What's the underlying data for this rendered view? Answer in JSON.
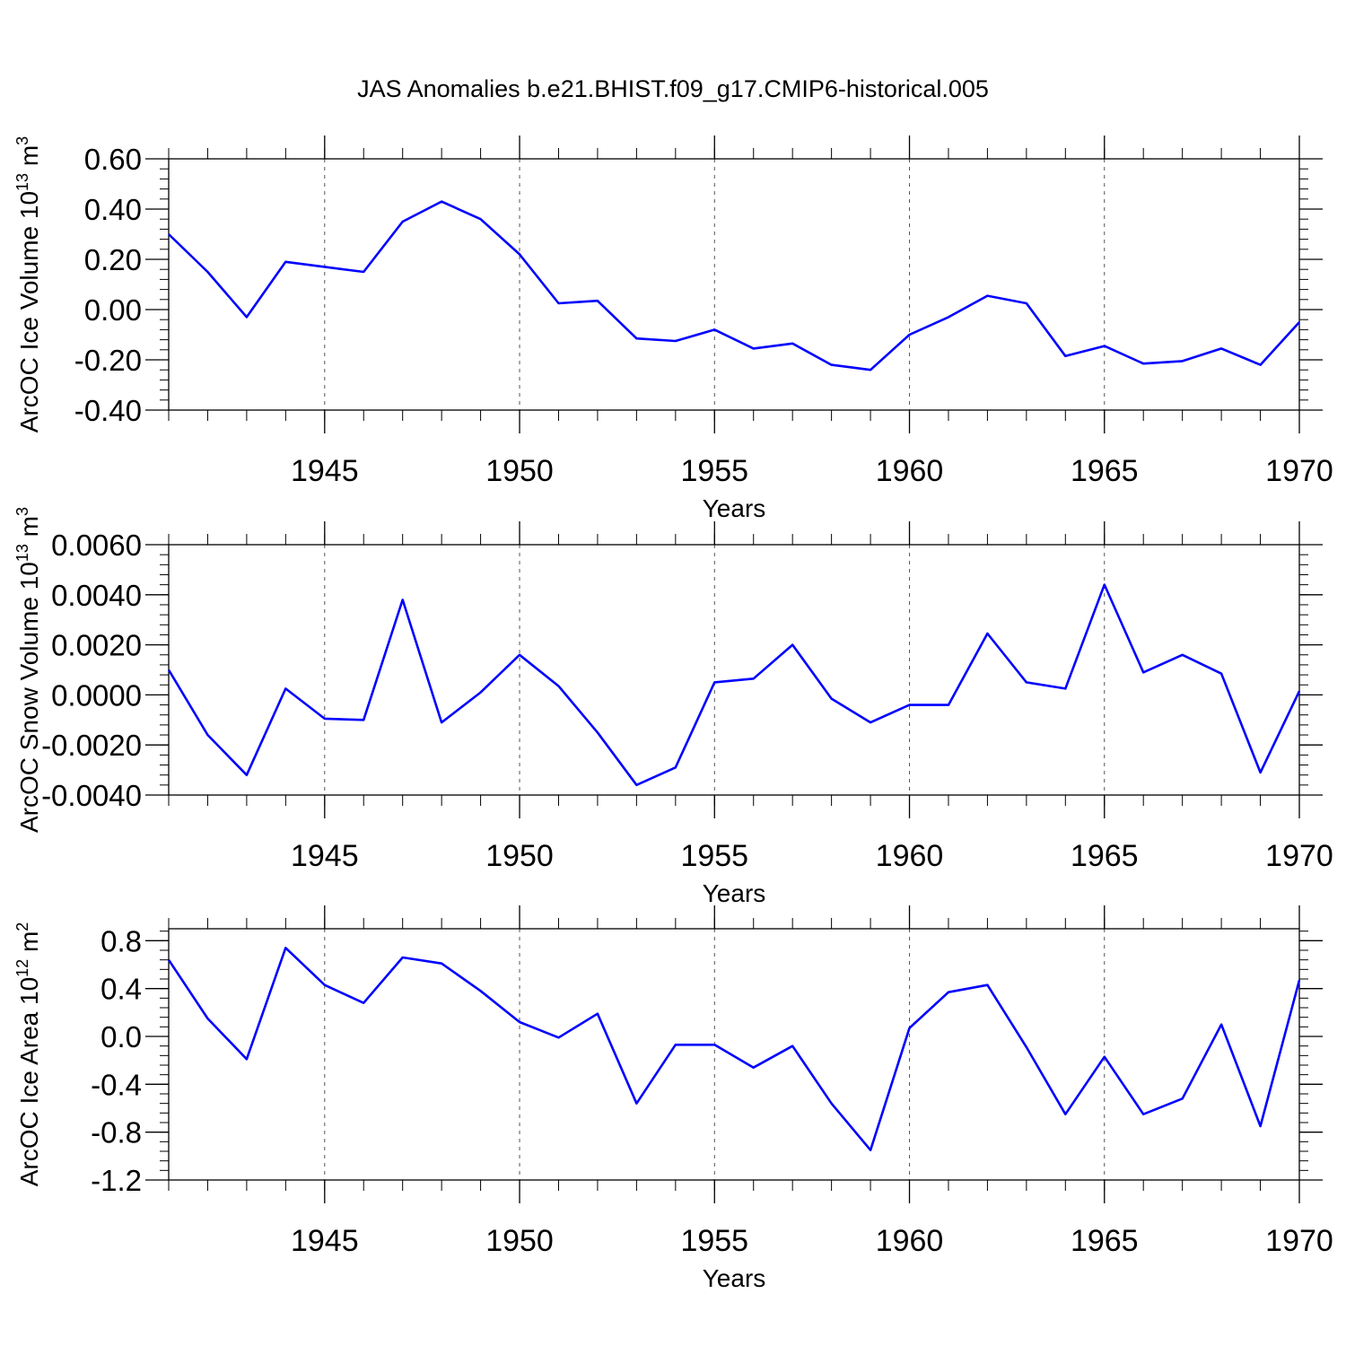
{
  "title": "JAS Anomalies b.e21.BHIST.f09_g17.CMIP6-historical.005",
  "line_color": "#0000ff",
  "chart_data": [
    {
      "type": "line",
      "title": "JAS Anomalies b.e21.BHIST.f09_g17.CMIP6-historical.005",
      "ylabel": "ArcOC Ice Volume 10^13 m^3",
      "ylabel_parts": {
        "main": "ArcOC Ice Volume 10",
        "exp1": "13",
        "mid": " m",
        "exp2": "3"
      },
      "xlabel": "Years",
      "xlim": [
        1941,
        1970
      ],
      "ylim": [
        -0.4,
        0.6
      ],
      "yticks": [
        -0.4,
        -0.2,
        0.0,
        0.2,
        0.4,
        0.6
      ],
      "ytick_labels": [
        "-0.40",
        "-0.20",
        "0.00",
        "0.20",
        "0.40",
        "0.60"
      ],
      "xticks": [
        1945,
        1950,
        1955,
        1960,
        1965,
        1970
      ],
      "xtick_labels": [
        "1945",
        "1950",
        "1955",
        "1960",
        "1965",
        "1970"
      ],
      "x": [
        1941,
        1942,
        1943,
        1944,
        1945,
        1946,
        1947,
        1948,
        1949,
        1950,
        1951,
        1952,
        1953,
        1954,
        1955,
        1956,
        1957,
        1958,
        1959,
        1960,
        1961,
        1962,
        1963,
        1964,
        1965,
        1966,
        1967,
        1968,
        1969,
        1970
      ],
      "y": [
        0.3,
        0.15,
        -0.03,
        0.19,
        0.17,
        0.15,
        0.35,
        0.43,
        0.36,
        0.22,
        0.025,
        0.035,
        -0.115,
        -0.125,
        -0.08,
        -0.155,
        -0.135,
        -0.22,
        -0.24,
        -0.1,
        -0.03,
        0.055,
        0.025,
        -0.185,
        -0.145,
        -0.215,
        -0.205,
        -0.155,
        -0.22,
        -0.05
      ]
    },
    {
      "type": "line",
      "ylabel": "ArcOC Snow Volume 10^13 m^3",
      "ylabel_parts": {
        "main": "ArcOC Snow Volume 10",
        "exp1": "13",
        "mid": " m",
        "exp2": "3"
      },
      "xlabel": "Years",
      "xlim": [
        1941,
        1970
      ],
      "ylim": [
        -0.004,
        0.006
      ],
      "yticks": [
        -0.004,
        -0.002,
        0.0,
        0.002,
        0.004,
        0.006
      ],
      "ytick_labels": [
        "-0.0040",
        "-0.0020",
        "0.0000",
        "0.0020",
        "0.0040",
        "0.0060"
      ],
      "xticks": [
        1945,
        1950,
        1955,
        1960,
        1965,
        1970
      ],
      "xtick_labels": [
        "1945",
        "1950",
        "1955",
        "1960",
        "1965",
        "1970"
      ],
      "x": [
        1941,
        1942,
        1943,
        1944,
        1945,
        1946,
        1947,
        1948,
        1949,
        1950,
        1951,
        1952,
        1953,
        1954,
        1955,
        1956,
        1957,
        1958,
        1959,
        1960,
        1961,
        1962,
        1963,
        1964,
        1965,
        1966,
        1967,
        1968,
        1969,
        1970
      ],
      "y": [
        0.001,
        -0.0016,
        -0.0032,
        0.00025,
        -0.00095,
        -0.001,
        0.0038,
        -0.0011,
        0.0001,
        0.0016,
        0.00035,
        -0.0015,
        -0.0036,
        -0.0029,
        0.0005,
        0.00065,
        0.002,
        -0.00015,
        -0.0011,
        -0.0004,
        -0.0004,
        0.00245,
        0.0005,
        0.00025,
        0.0044,
        0.0009,
        0.0016,
        0.00085,
        -0.0031,
        0.00015
      ]
    },
    {
      "type": "line",
      "ylabel": "ArcOC Ice Area 10^12 m^2",
      "ylabel_parts": {
        "main": "ArcOC Ice Area 10",
        "exp1": "12",
        "mid": " m",
        "exp2": "2"
      },
      "xlabel": "Years",
      "xlim": [
        1941,
        1970
      ],
      "ylim": [
        -1.2,
        0.9
      ],
      "yticks": [
        -1.2,
        -0.8,
        -0.4,
        0.0,
        0.4,
        0.8
      ],
      "ytick_labels": [
        "-1.2",
        "-0.8",
        "-0.4",
        "0.0",
        "0.4",
        "0.8"
      ],
      "xticks": [
        1945,
        1950,
        1955,
        1960,
        1965,
        1970
      ],
      "xtick_labels": [
        "1945",
        "1950",
        "1955",
        "1960",
        "1965",
        "1970"
      ],
      "x": [
        1941,
        1942,
        1943,
        1944,
        1945,
        1946,
        1947,
        1948,
        1949,
        1950,
        1951,
        1952,
        1953,
        1954,
        1955,
        1956,
        1957,
        1958,
        1959,
        1960,
        1961,
        1962,
        1963,
        1964,
        1965,
        1966,
        1967,
        1968,
        1969,
        1970
      ],
      "y": [
        0.64,
        0.15,
        -0.19,
        0.74,
        0.43,
        0.28,
        0.66,
        0.61,
        0.38,
        0.12,
        -0.01,
        0.19,
        -0.56,
        -0.07,
        -0.07,
        -0.26,
        -0.08,
        -0.56,
        -0.95,
        0.07,
        0.37,
        0.43,
        -0.09,
        -0.65,
        -0.17,
        -0.65,
        -0.52,
        0.1,
        -0.75,
        0.47
      ]
    }
  ]
}
